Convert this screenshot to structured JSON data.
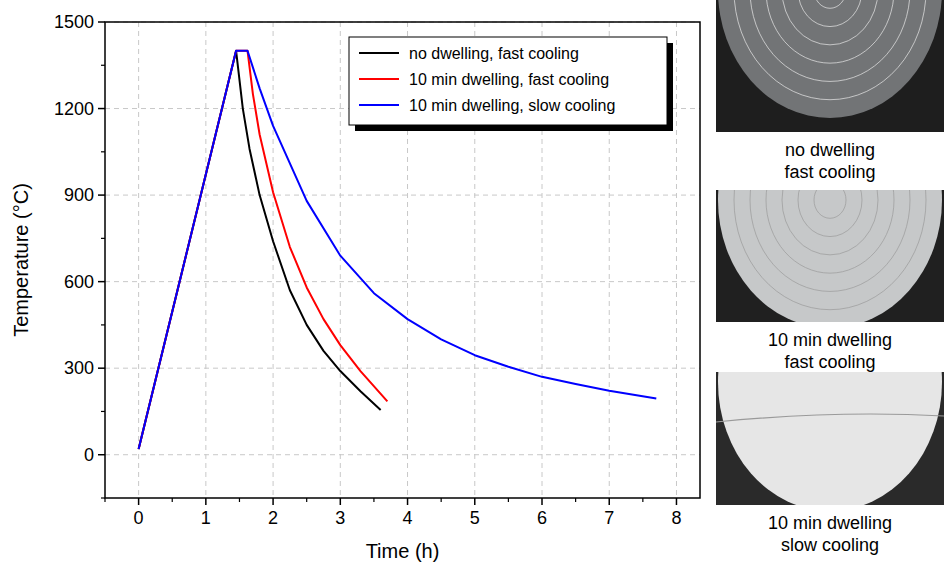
{
  "chart_data": {
    "type": "line",
    "x_label": "Time (h)",
    "y_label": "Temperature (°C)",
    "xlim": [
      -0.5,
      8.35
    ],
    "xticks": [
      0,
      1,
      2,
      3,
      4,
      5,
      6,
      7,
      8
    ],
    "ylim": [
      -150,
      1500
    ],
    "yticks": [
      0,
      300,
      600,
      900,
      1200,
      1500
    ],
    "grid": true,
    "legend": "top-right",
    "series": [
      {
        "name": "no dwelling, fast cooling",
        "color": "#000000",
        "x": [
          0,
          1.45,
          1.55,
          1.65,
          1.8,
          2.0,
          2.25,
          2.5,
          2.75,
          3.0,
          3.3,
          3.6
        ],
        "values": [
          20,
          1400,
          1200,
          1060,
          900,
          740,
          570,
          450,
          360,
          290,
          220,
          155
        ]
      },
      {
        "name": "10 min dwelling, fast cooling",
        "color": "#ff0000",
        "x": [
          0,
          1.45,
          1.62,
          1.7,
          1.8,
          2.0,
          2.25,
          2.5,
          2.75,
          3.0,
          3.3,
          3.7
        ],
        "values": [
          20,
          1400,
          1400,
          1250,
          1110,
          910,
          720,
          580,
          470,
          380,
          290,
          185
        ]
      },
      {
        "name": "10 min dwelling, slow cooling",
        "color": "#0000ff",
        "x": [
          0,
          1.45,
          1.62,
          1.8,
          2.0,
          2.5,
          3.0,
          3.5,
          4.0,
          4.5,
          5.0,
          5.5,
          6.0,
          6.5,
          7.0,
          7.7
        ],
        "values": [
          20,
          1400,
          1400,
          1270,
          1140,
          880,
          690,
          560,
          470,
          400,
          345,
          305,
          270,
          245,
          222,
          195
        ]
      }
    ]
  },
  "photos": [
    {
      "caption": [
        "no dwelling",
        "fast cooling"
      ]
    },
    {
      "caption": [
        "10 min dwelling",
        "fast cooling"
      ]
    },
    {
      "caption": [
        "10 min dwelling",
        "slow cooling"
      ]
    }
  ]
}
